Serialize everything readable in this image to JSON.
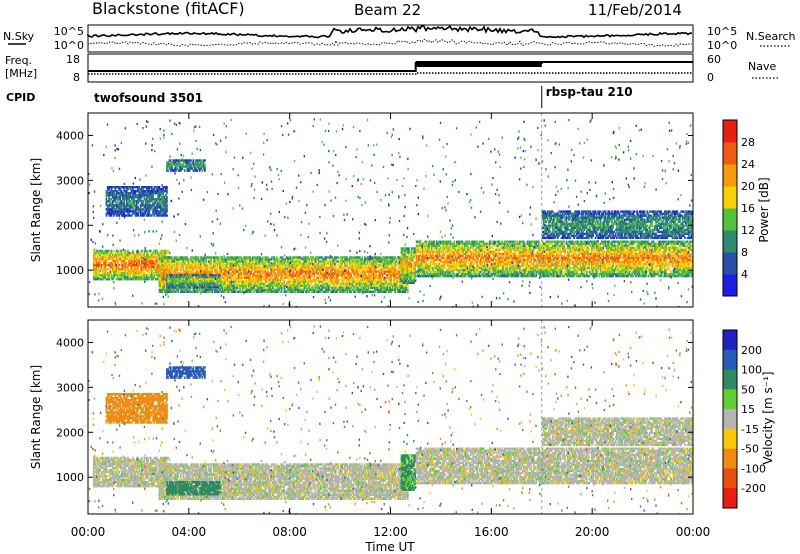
{
  "chart_data": {
    "type": "heatmap",
    "header": {
      "station": "Blackstone (fitACF)",
      "beam": "Beam 22",
      "date": "11/Feb/2014"
    },
    "noise_panel": {
      "left_label": "N.Sky",
      "right_label": "N.Search",
      "ticks": [
        "10^5",
        "10^0"
      ]
    },
    "freq_panel": {
      "left_label_1": "Freq.",
      "left_label_2": "[MHz]",
      "right_label": "Nave",
      "left_ticks": [
        18,
        8
      ],
      "right_ticks": [
        60,
        0
      ]
    },
    "cpid": {
      "label": "CPID",
      "segments": [
        {
          "name": "twofsound 3501",
          "start_hour": 0,
          "end_hour": 18
        },
        {
          "name": "rbsp-tau 210",
          "start_hour": 18,
          "end_hour": 24
        }
      ]
    },
    "x_axis": {
      "label": "Time UT",
      "range_hours": [
        0,
        24
      ],
      "ticks": [
        0,
        4,
        8,
        12,
        16,
        20,
        24
      ],
      "tick_labels": [
        "00:00",
        "04:00",
        "08:00",
        "12:00",
        "16:00",
        "20:00",
        "00:00"
      ]
    },
    "y_axis": {
      "label": "Slant Range [km]",
      "range_km": [
        180,
        4500
      ],
      "ticks": [
        1000,
        2000,
        3000,
        4000
      ]
    },
    "power_panel": {
      "colorbar_label": "Power [dB]",
      "colorbar_ticks": [
        4,
        8,
        12,
        16,
        20,
        24,
        28
      ],
      "colors": [
        "#1e1ee6",
        "#2850a8",
        "#2e8a72",
        "#52c23c",
        "#f5d20a",
        "#f59a0a",
        "#f05a14",
        "#e61e14"
      ]
    },
    "velocity_panel": {
      "colorbar_label": "Velocity [m s⁻¹]",
      "colorbar_ticks": [
        "200",
        "100",
        "50",
        "15",
        "-15",
        "-50",
        "-100",
        "-200"
      ],
      "colors": [
        "#2020c0",
        "#2a5ab8",
        "#2e8a60",
        "#60d030",
        "#b4b4b4",
        "#f5c80a",
        "#f08c14",
        "#e65010",
        "#e61e14"
      ]
    },
    "echo_regions": [
      {
        "t0": 0.2,
        "t1": 3.2,
        "r0": 780,
        "r1": 1450,
        "p": 26,
        "v": 0
      },
      {
        "t0": 2.8,
        "t1": 12.7,
        "r0": 500,
        "r1": 1300,
        "p": 24,
        "v": 0
      },
      {
        "t0": 3.1,
        "t1": 5.2,
        "r0": 600,
        "r1": 900,
        "p": 16,
        "v": 70
      },
      {
        "t0": 12.4,
        "t1": 13.0,
        "r0": 700,
        "r1": 1500,
        "p": 22,
        "v": 60
      },
      {
        "t0": 13.0,
        "t1": 24.0,
        "r0": 850,
        "r1": 1650,
        "p": 24,
        "v": 0
      },
      {
        "t0": 0.7,
        "t1": 3.1,
        "r0": 2200,
        "r1": 2850,
        "p": 10,
        "v": -70
      },
      {
        "t0": 3.1,
        "t1": 4.6,
        "r0": 3200,
        "r1": 3450,
        "p": 12,
        "v": 120
      },
      {
        "t0": 18.0,
        "t1": 24.0,
        "r0": 1700,
        "r1": 2300,
        "p": 12,
        "v": 0
      }
    ]
  }
}
